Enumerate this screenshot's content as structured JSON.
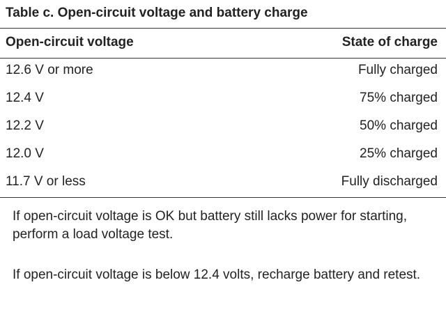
{
  "table": {
    "title": "Table c. Open-circuit voltage and battery charge",
    "header": [
      "Open-circuit voltage",
      "State of charge"
    ],
    "rows": [
      [
        "12.6 V or more",
        "Fully charged"
      ],
      [
        "12.4 V",
        "75% charged"
      ],
      [
        "12.2 V",
        "50% charged"
      ],
      [
        "12.0 V",
        "25% charged"
      ],
      [
        "11.7 V or less",
        "Fully discharged"
      ]
    ]
  },
  "notes": [
    "If open-circuit voltage is OK but battery still lacks power for starting, perform a load voltage test.",
    "If open-circuit voltage is below 12.4 volts, recharge battery and retest."
  ]
}
